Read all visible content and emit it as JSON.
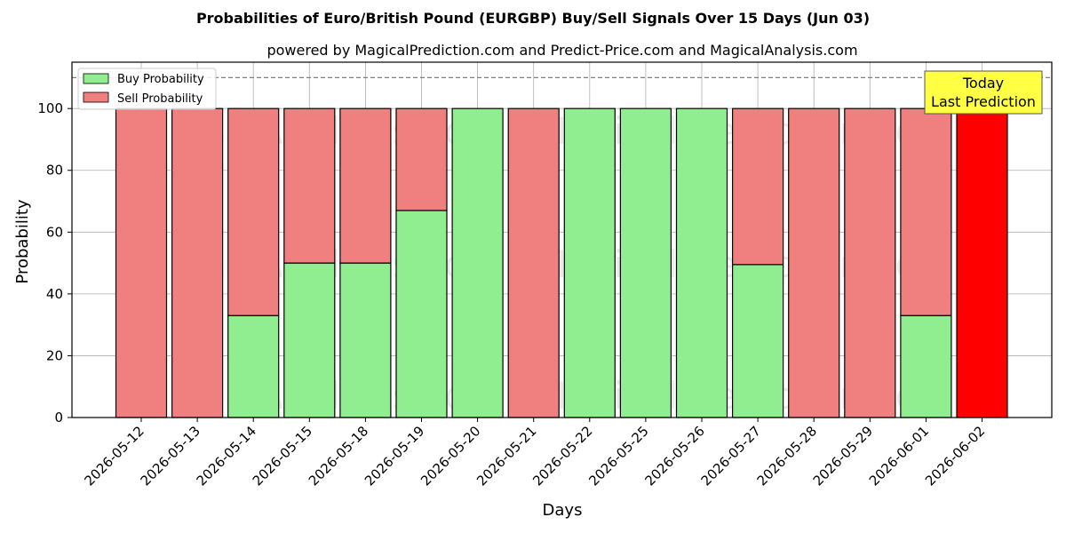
{
  "chart_data": {
    "type": "bar",
    "stacked": true,
    "title": "Probabilities of Euro/British Pound (EURGBP) Buy/Sell Signals Over 15 Days (Jun 03)",
    "subtitle": "powered by MagicalPrediction.com and Predict-Price.com and MagicalAnalysis.com",
    "xlabel": "Days",
    "ylabel": "Probability",
    "ylim": [
      0,
      115
    ],
    "yticks": [
      0,
      20,
      40,
      60,
      80,
      100
    ],
    "grid": true,
    "legend_position": "top-left",
    "reference_line": 110,
    "categories": [
      "2026-05-12",
      "2026-05-13",
      "2026-05-14",
      "2026-05-15",
      "2026-05-18",
      "2026-05-19",
      "2026-05-20",
      "2026-05-21",
      "2026-05-22",
      "2026-05-25",
      "2026-05-26",
      "2026-05-27",
      "2026-05-28",
      "2026-05-29",
      "2026-06-01",
      "2026-06-02"
    ],
    "series": [
      {
        "name": "Buy Probability",
        "color": "#90ee90",
        "values": [
          0,
          0,
          33,
          50,
          50,
          67,
          100,
          0,
          100,
          100,
          100,
          49.5,
          0,
          0,
          33,
          0
        ]
      },
      {
        "name": "Sell Probability",
        "color": "#f08080",
        "values": [
          100,
          100,
          67,
          50,
          50,
          33,
          0,
          100,
          0,
          0,
          0,
          50.5,
          100,
          100,
          67,
          100
        ]
      }
    ],
    "highlight": {
      "category": "2026-06-02",
      "color": "#ff0000"
    },
    "annotation": {
      "line1": "Today",
      "line2": "Last Prediction",
      "color": "#ffff44"
    },
    "watermarks": [
      "MagicalAnalysis.com",
      "MagicalPrediction.com"
    ]
  }
}
